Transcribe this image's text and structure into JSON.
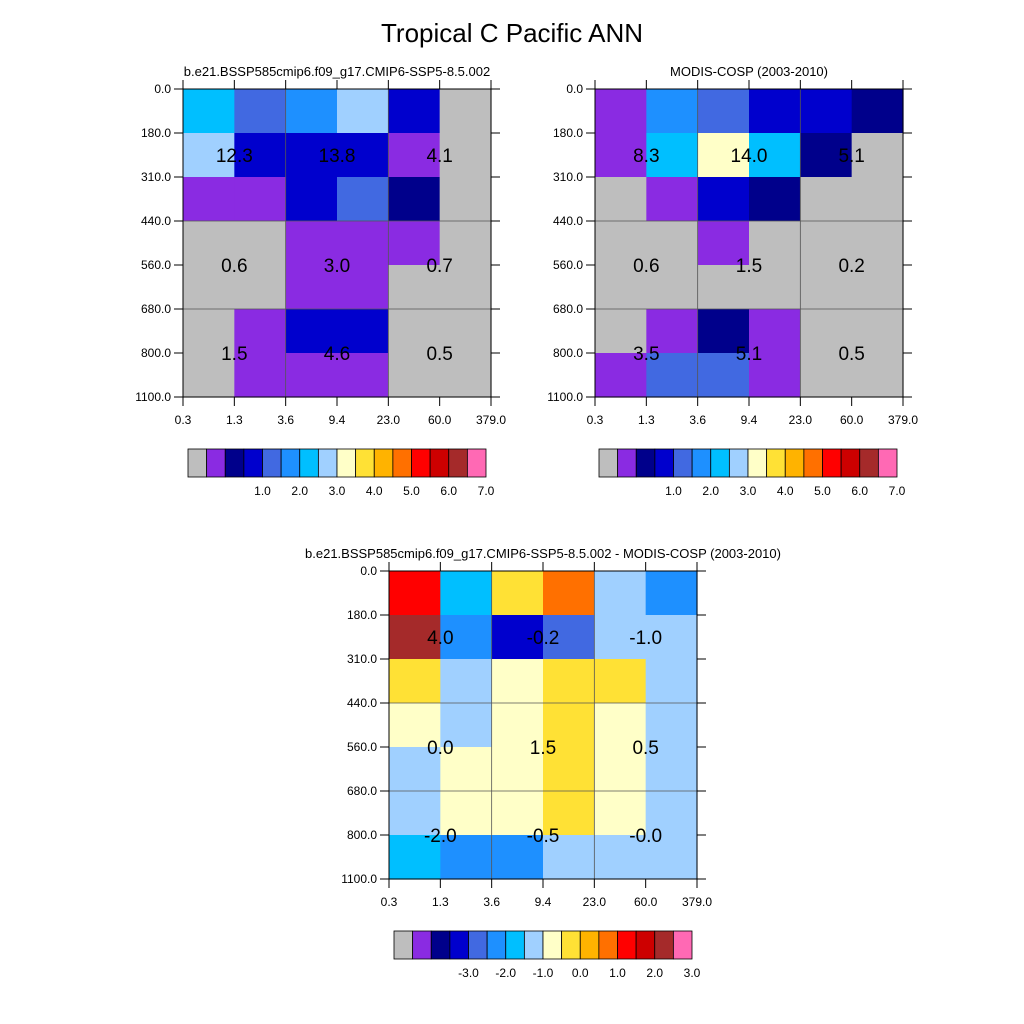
{
  "title": "Tropical C Pacific ANN",
  "chart_data": [
    {
      "type": "heatmap",
      "title": "b.e21.BSSP585cmip6.f09_g17.CMIP6-SSP5-8.5.002",
      "x_ticks": [
        "0.3",
        "1.3",
        "3.6",
        "9.4",
        "23.0",
        "60.0",
        "379.0"
      ],
      "y_ticks": [
        "0.0",
        "180.0",
        "310.0",
        "440.0",
        "560.0",
        "680.0",
        "800.0",
        "1100.0"
      ],
      "cell_colors": [
        [
          "#00bfff",
          "#4169e1",
          "#1e90ff",
          "#a0d0ff",
          "#0000cd",
          "#bebebe"
        ],
        [
          "#a0d0ff",
          "#0000cd",
          "#0000cd",
          "#0000cd",
          "#8a2be2",
          "#bebebe"
        ],
        [
          "#8a2be2",
          "#8a2be2",
          "#0000cd",
          "#4169e1",
          "#00008b",
          "#bebebe"
        ],
        [
          "#bebebe",
          "#bebebe",
          "#8a2be2",
          "#8a2be2",
          "#8a2be2",
          "#bebebe"
        ],
        [
          "#bebebe",
          "#bebebe",
          "#8a2be2",
          "#8a2be2",
          "#bebebe",
          "#bebebe"
        ],
        [
          "#bebebe",
          "#8a2be2",
          "#0000cd",
          "#0000cd",
          "#bebebe",
          "#bebebe"
        ],
        [
          "#bebebe",
          "#8a2be2",
          "#8a2be2",
          "#8a2be2",
          "#bebebe",
          "#bebebe"
        ]
      ],
      "box_values": [
        [
          "12.3",
          "13.8",
          "4.1"
        ],
        [
          "0.6",
          "3.0",
          "0.7"
        ],
        [
          "1.5",
          "4.6",
          "0.5"
        ]
      ],
      "colorbar": {
        "colors": [
          "#bebebe",
          "#8a2be2",
          "#00008b",
          "#0000cd",
          "#4169e1",
          "#1e90ff",
          "#00bfff",
          "#a0d0ff",
          "#ffffc8",
          "#ffe135",
          "#ffb300",
          "#ff7000",
          "#ff0000",
          "#cd0000",
          "#a52a2a",
          "#ff69b4"
        ],
        "labels": [
          "1.0",
          "2.0",
          "3.0",
          "4.0",
          "5.0",
          "6.0",
          "7.0"
        ]
      }
    },
    {
      "type": "heatmap",
      "title": "MODIS-COSP (2003-2010)",
      "x_ticks": [
        "0.3",
        "1.3",
        "3.6",
        "9.4",
        "23.0",
        "60.0",
        "379.0"
      ],
      "y_ticks": [
        "0.0",
        "180.0",
        "310.0",
        "440.0",
        "560.0",
        "680.0",
        "800.0",
        "1100.0"
      ],
      "cell_colors": [
        [
          "#8a2be2",
          "#1e90ff",
          "#4169e1",
          "#0000cd",
          "#0000cd",
          "#00008b"
        ],
        [
          "#8a2be2",
          "#00bfff",
          "#ffffc8",
          "#00bfff",
          "#00008b",
          "#bebebe"
        ],
        [
          "#bebebe",
          "#8a2be2",
          "#0000cd",
          "#00008b",
          "#bebebe",
          "#bebebe"
        ],
        [
          "#bebebe",
          "#bebebe",
          "#8a2be2",
          "#bebebe",
          "#bebebe",
          "#bebebe"
        ],
        [
          "#bebebe",
          "#bebebe",
          "#bebebe",
          "#bebebe",
          "#bebebe",
          "#bebebe"
        ],
        [
          "#bebebe",
          "#8a2be2",
          "#00008b",
          "#8a2be2",
          "#bebebe",
          "#bebebe"
        ],
        [
          "#8a2be2",
          "#4169e1",
          "#4169e1",
          "#8a2be2",
          "#bebebe",
          "#bebebe"
        ]
      ],
      "box_values": [
        [
          "8.3",
          "14.0",
          "5.1"
        ],
        [
          "0.6",
          "1.5",
          "0.2"
        ],
        [
          "3.5",
          "5.1",
          "0.5"
        ]
      ],
      "colorbar": {
        "colors": [
          "#bebebe",
          "#8a2be2",
          "#00008b",
          "#0000cd",
          "#4169e1",
          "#1e90ff",
          "#00bfff",
          "#a0d0ff",
          "#ffffc8",
          "#ffe135",
          "#ffb300",
          "#ff7000",
          "#ff0000",
          "#cd0000",
          "#a52a2a",
          "#ff69b4"
        ],
        "labels": [
          "1.0",
          "2.0",
          "3.0",
          "4.0",
          "5.0",
          "6.0",
          "7.0"
        ]
      }
    },
    {
      "type": "heatmap",
      "title": "b.e21.BSSP585cmip6.f09_g17.CMIP6-SSP5-8.5.002 - MODIS-COSP (2003-2010)",
      "x_ticks": [
        "0.3",
        "1.3",
        "3.6",
        "9.4",
        "23.0",
        "60.0",
        "379.0"
      ],
      "y_ticks": [
        "0.0",
        "180.0",
        "310.0",
        "440.0",
        "560.0",
        "680.0",
        "800.0",
        "1100.0"
      ],
      "cell_colors": [
        [
          "#ff0000",
          "#00bfff",
          "#ffe135",
          "#ff7000",
          "#a0d0ff",
          "#1e90ff"
        ],
        [
          "#a52a2a",
          "#1e90ff",
          "#0000cd",
          "#4169e1",
          "#a0d0ff",
          "#a0d0ff"
        ],
        [
          "#ffe135",
          "#a0d0ff",
          "#ffffc8",
          "#ffe135",
          "#ffe135",
          "#a0d0ff"
        ],
        [
          "#ffffc8",
          "#a0d0ff",
          "#ffffc8",
          "#ffe135",
          "#ffffc8",
          "#a0d0ff"
        ],
        [
          "#a0d0ff",
          "#ffffc8",
          "#ffffc8",
          "#ffe135",
          "#ffffc8",
          "#a0d0ff"
        ],
        [
          "#a0d0ff",
          "#ffffc8",
          "#ffffc8",
          "#ffe135",
          "#ffffc8",
          "#a0d0ff"
        ],
        [
          "#00bfff",
          "#1e90ff",
          "#1e90ff",
          "#a0d0ff",
          "#a0d0ff",
          "#a0d0ff"
        ]
      ],
      "box_values": [
        [
          "4.0",
          "-0.2",
          "-1.0"
        ],
        [
          "0.0",
          "1.5",
          "0.5"
        ],
        [
          "-2.0",
          "-0.5",
          "-0.0"
        ]
      ],
      "colorbar": {
        "colors": [
          "#bebebe",
          "#8a2be2",
          "#00008b",
          "#0000cd",
          "#4169e1",
          "#1e90ff",
          "#00bfff",
          "#a0d0ff",
          "#ffffc8",
          "#ffe135",
          "#ffb300",
          "#ff7000",
          "#ff0000",
          "#cd0000",
          "#a52a2a",
          "#ff69b4"
        ],
        "labels": [
          "-3.0",
          "-2.0",
          "-1.0",
          "0.0",
          "1.0",
          "2.0",
          "3.0"
        ]
      }
    }
  ]
}
